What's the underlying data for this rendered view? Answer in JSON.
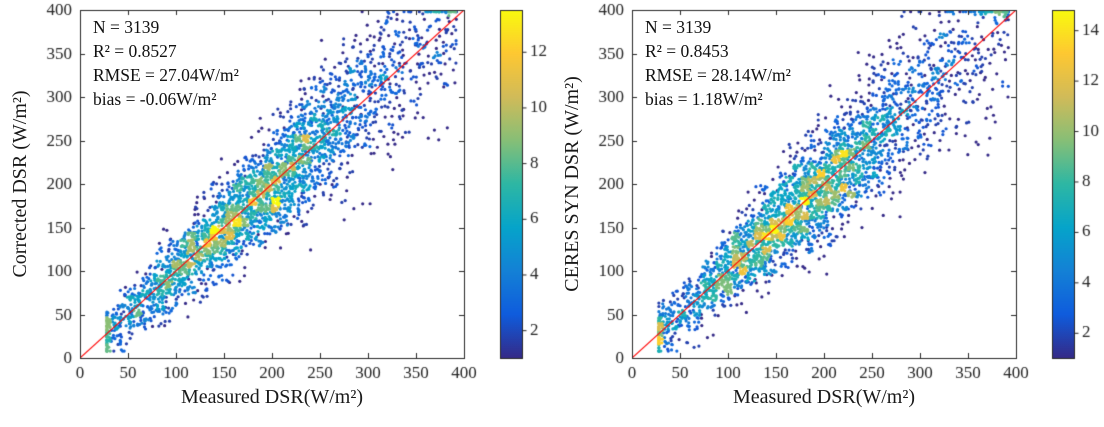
{
  "style": {
    "background": "#ffffff",
    "text_color": "#262626",
    "axis_color": "#262626",
    "identity_line_color": "#ff0000",
    "colormap": [
      "#352a87",
      "#0f5cdd",
      "#1481d6",
      "#06a4ca",
      "#2eb7a4",
      "#87bf77",
      "#d1bb59",
      "#fec832",
      "#f9fb0e"
    ]
  },
  "chart_data": [
    {
      "type": "scatter",
      "title": "",
      "xlabel": "Measured DSR(W/m²)",
      "ylabel": "Corrected DSR (W/m²)",
      "xlim": [
        0,
        400
      ],
      "ylim": [
        0,
        400
      ],
      "xticks": [
        0,
        50,
        100,
        150,
        200,
        250,
        300,
        350,
        400
      ],
      "yticks": [
        0,
        50,
        100,
        150,
        200,
        250,
        300,
        350,
        400
      ],
      "grid": false,
      "annotations": [
        "N = 3139",
        "R² = 0.8527",
        "RMSE = 27.04W/m²",
        "bias = -0.06W/m²"
      ],
      "stats": {
        "n": 3139,
        "r2": 0.8527,
        "rmse_w_m2": 27.04,
        "bias_w_m2": -0.06
      },
      "identity_line": {
        "from": [
          0,
          0
        ],
        "to": [
          400,
          400
        ]
      },
      "colorbar": {
        "min": 1,
        "max": 13.5,
        "ticks": [
          2,
          4,
          6,
          8,
          10,
          12
        ]
      },
      "scatter_spec": {
        "seed": 17,
        "n": 3139,
        "x_mean": 180,
        "x_sd": 75,
        "uniform_frac": 0.25,
        "x_range": [
          28,
          392
        ],
        "noise_base": 0.45,
        "noise_slope": 0.75,
        "noise_ref": 220,
        "y_range": [
          8,
          398
        ],
        "bin_size": 8,
        "point_radius": 1.6
      }
    },
    {
      "type": "scatter",
      "title": "",
      "xlabel": "Measured DSR(W/m²)",
      "ylabel": "CERES SYN DSR (W/m²)",
      "xlim": [
        0,
        400
      ],
      "ylim": [
        0,
        400
      ],
      "xticks": [
        0,
        50,
        100,
        150,
        200,
        250,
        300,
        350,
        400
      ],
      "yticks": [
        0,
        50,
        100,
        150,
        200,
        250,
        300,
        350,
        400
      ],
      "grid": false,
      "annotations": [
        "N = 3139",
        "R² = 0.8453",
        "RMSE = 28.14W/m²",
        "bias = 1.18W/m²"
      ],
      "stats": {
        "n": 3139,
        "r2": 0.8453,
        "rmse_w_m2": 28.14,
        "bias_w_m2": 1.18
      },
      "identity_line": {
        "from": [
          0,
          0
        ],
        "to": [
          400,
          400
        ]
      },
      "colorbar": {
        "min": 1,
        "max": 14.8,
        "ticks": [
          2,
          4,
          6,
          8,
          10,
          12,
          14
        ]
      },
      "scatter_spec": {
        "seed": 53,
        "n": 3139,
        "x_mean": 180,
        "x_sd": 75,
        "uniform_frac": 0.25,
        "x_range": [
          28,
          392
        ],
        "noise_base": 0.45,
        "noise_slope": 0.75,
        "noise_ref": 220,
        "y_range": [
          8,
          398
        ],
        "bin_size": 8,
        "point_radius": 1.6
      }
    }
  ]
}
